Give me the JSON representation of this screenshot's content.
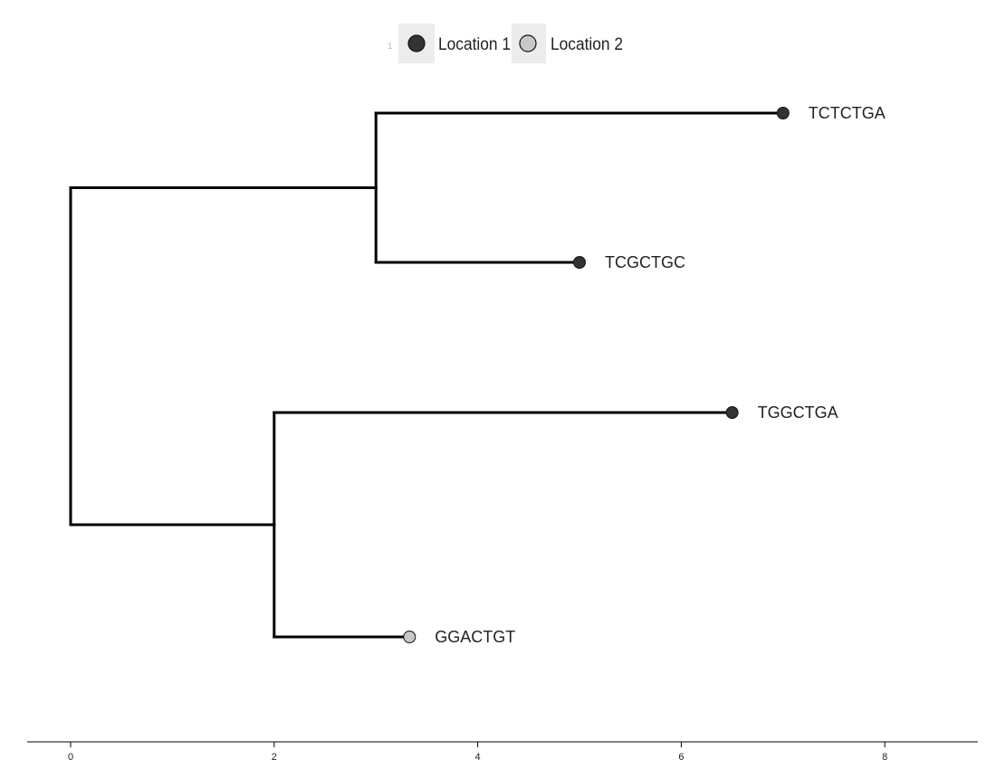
{
  "chart_data": {
    "type": "tree",
    "legend": {
      "position": "top",
      "number": "1",
      "entries": [
        {
          "label": "Location 1",
          "color": "#333333"
        },
        {
          "label": "Location 2",
          "color": "#c8c8c8"
        }
      ]
    },
    "x_axis": {
      "ticks": [
        0,
        2,
        4,
        6,
        8
      ],
      "range": [
        0,
        8.9
      ]
    },
    "branch_color": "#000000",
    "internal_nodes": [
      {
        "id": "root",
        "x": 0
      },
      {
        "id": "upper-clade",
        "x": 3
      },
      {
        "id": "lower-clade",
        "x": 2
      }
    ],
    "edges": [
      {
        "from": "root",
        "to": "upper-clade"
      },
      {
        "from": "root",
        "to": "lower-clade"
      },
      {
        "from": "upper-clade",
        "to": "TCTCTGA"
      },
      {
        "from": "upper-clade",
        "to": "TCGCTGC"
      },
      {
        "from": "lower-clade",
        "to": "TGGCTGA"
      },
      {
        "from": "lower-clade",
        "to": "GGACTGT"
      }
    ],
    "tips": [
      {
        "label": "TCTCTGA",
        "x": 7.0,
        "location": "Location 1"
      },
      {
        "label": "TCGCTGC",
        "x": 5.0,
        "location": "Location 1"
      },
      {
        "label": "TGGCTGA",
        "x": 6.5,
        "location": "Location 1"
      },
      {
        "label": "GGACTGT",
        "x": 3.33,
        "location": "Location 2"
      }
    ]
  }
}
